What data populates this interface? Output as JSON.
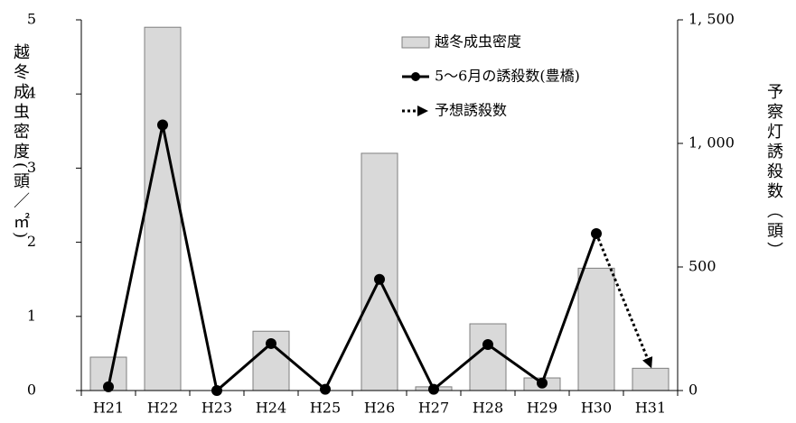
{
  "chart_data": {
    "type": "bar-line",
    "y_label": "越冬成虫密度(頭／㎡)",
    "y2_label": "予察灯誘殺数（頭）",
    "categories": [
      "H21",
      "H22",
      "H23",
      "H24",
      "H25",
      "H26",
      "H27",
      "H28",
      "H29",
      "H30",
      "H31"
    ],
    "series": [
      {
        "name": "越冬成虫密度",
        "type": "bar",
        "color": "#d9d9d9",
        "values": [
          0.45,
          4.9,
          0,
          0.8,
          0,
          3.2,
          0.05,
          0.9,
          0.17,
          1.65,
          0.3
        ]
      },
      {
        "name": "5～6月の誘殺数(豊橋)",
        "type": "line",
        "axis": "y2",
        "color": "#000000",
        "marker": "circle",
        "values": [
          15,
          1075,
          0,
          190,
          5,
          450,
          5,
          186,
          30,
          635,
          null
        ]
      },
      {
        "name": "予想誘殺数",
        "type": "line",
        "axis": "y2",
        "color": "#000000",
        "style": "dotted",
        "arrow": true,
        "values": [
          null,
          null,
          null,
          null,
          null,
          null,
          null,
          null,
          null,
          635,
          100
        ]
      }
    ],
    "ylim": [
      0,
      5
    ],
    "yticks": [
      0,
      1,
      2,
      3,
      4,
      5
    ],
    "y2lim": [
      0,
      1500
    ],
    "y2ticks": [
      0,
      500,
      {
        "value": 1000,
        "label": "1, 000"
      },
      {
        "value": 1500,
        "label": "1, 500"
      }
    ]
  }
}
